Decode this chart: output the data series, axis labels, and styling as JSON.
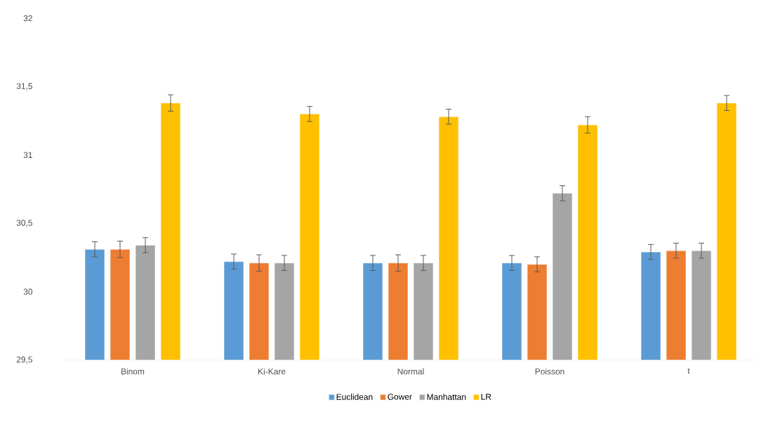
{
  "chart_data": {
    "type": "bar",
    "categories": [
      "Binom",
      "Ki-Kare",
      "Normal",
      "Poisson",
      "t"
    ],
    "series": [
      {
        "name": "Euclidean",
        "color": "#5b9bd5",
        "values": [
          30.31,
          30.22,
          30.21,
          30.21,
          30.29
        ],
        "errors": [
          0.055,
          0.055,
          0.055,
          0.055,
          0.055
        ]
      },
      {
        "name": "Gower",
        "color": "#ed7d31",
        "values": [
          30.31,
          30.21,
          30.21,
          30.2,
          30.3
        ],
        "errors": [
          0.06,
          0.06,
          0.06,
          0.055,
          0.055
        ]
      },
      {
        "name": "Manhattan",
        "color": "#a5a5a5",
        "values": [
          30.34,
          30.21,
          30.21,
          30.72,
          30.3
        ],
        "errors": [
          0.055,
          0.055,
          0.055,
          0.055,
          0.055
        ]
      },
      {
        "name": "LR",
        "color": "#ffc000",
        "values": [
          31.38,
          31.3,
          31.28,
          31.22,
          31.38
        ],
        "errors": [
          0.06,
          0.055,
          0.055,
          0.06,
          0.055
        ]
      }
    ],
    "ylim": [
      29.5,
      32
    ],
    "yticks": [
      {
        "value": 29.5,
        "label": "29,5"
      },
      30,
      {
        "value": 30.5,
        "label": "30,5"
      },
      31,
      {
        "value": 31.5,
        "label": "31,5"
      },
      32
    ],
    "grid": false,
    "legend": "bottom"
  }
}
